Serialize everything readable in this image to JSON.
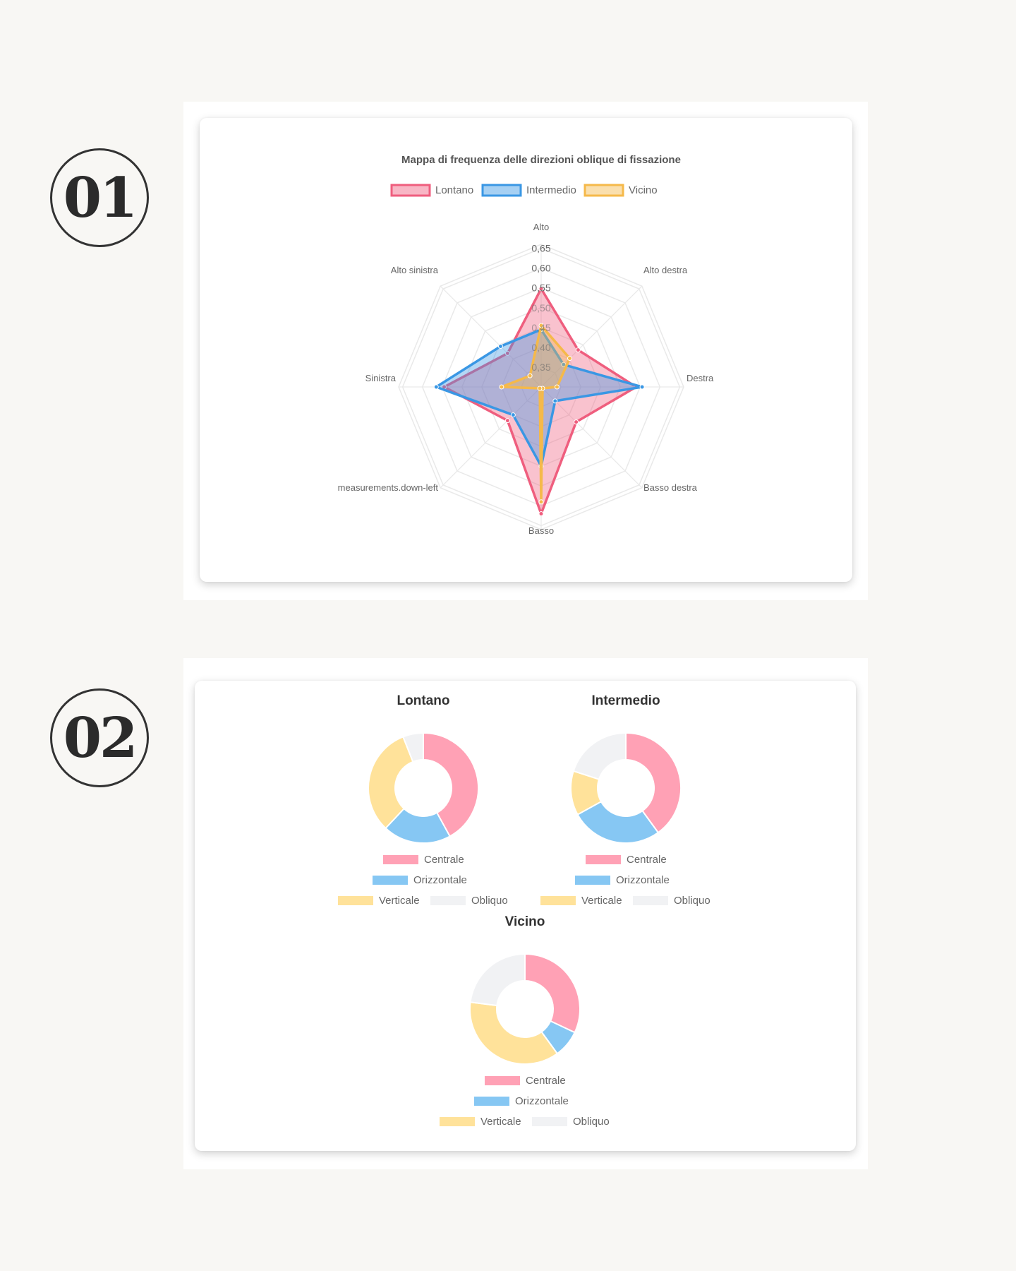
{
  "badges": {
    "first": "01",
    "second": "02"
  },
  "colors": {
    "lontano": "#ef5e7e",
    "intermedio": "#3a97e4",
    "vicino": "#f5b94a",
    "centrale": "#ffa1b5",
    "orizzontale": "#86c7f3",
    "verticale": "#ffe29a",
    "obliquo": "#f1f2f4",
    "grid": "#e9e9e9",
    "text": "#666666",
    "title": "#333333"
  },
  "chart_data": [
    {
      "type": "radar",
      "title": "Mappa di frequenza delle direzioni oblique di fissazione",
      "axes": [
        "Alto",
        "Alto destra",
        "Destra",
        "Basso destra",
        "Basso",
        "measurements.down-left",
        "Sinistra",
        "Alto sinistra"
      ],
      "r_ticks": [
        "0,35",
        "0,40",
        "0,45",
        "0,50",
        "0,55",
        "0,60",
        "0,65"
      ],
      "r_range": [
        0.3,
        0.66
      ],
      "legend_position": "top",
      "series": [
        {
          "name": "Lontano",
          "values": [
            0.548,
            0.432,
            0.54,
            0.425,
            0.62,
            0.42,
            0.545,
            0.42
          ]
        },
        {
          "name": "Intermedio",
          "values": [
            0.445,
            0.38,
            0.555,
            0.35,
            0.5,
            0.4,
            0.565,
            0.445
          ]
        },
        {
          "name": "Vicino",
          "values": [
            0.455,
            0.402,
            0.34,
            0.305,
            0.59,
            0.305,
            0.4,
            0.34
          ]
        }
      ]
    },
    {
      "type": "pie",
      "title": "Lontano",
      "labels": [
        "Centrale",
        "Orizzontale",
        "Verticale",
        "Obliquo"
      ],
      "values": [
        42,
        20,
        32,
        6
      ]
    },
    {
      "type": "pie",
      "title": "Intermedio",
      "labels": [
        "Centrale",
        "Orizzontale",
        "Verticale",
        "Obliquo"
      ],
      "values": [
        40,
        27,
        13,
        20
      ]
    },
    {
      "type": "pie",
      "title": "Vicino",
      "labels": [
        "Centrale",
        "Orizzontale",
        "Verticale",
        "Obliquo"
      ],
      "values": [
        32,
        8,
        37,
        23
      ]
    }
  ]
}
